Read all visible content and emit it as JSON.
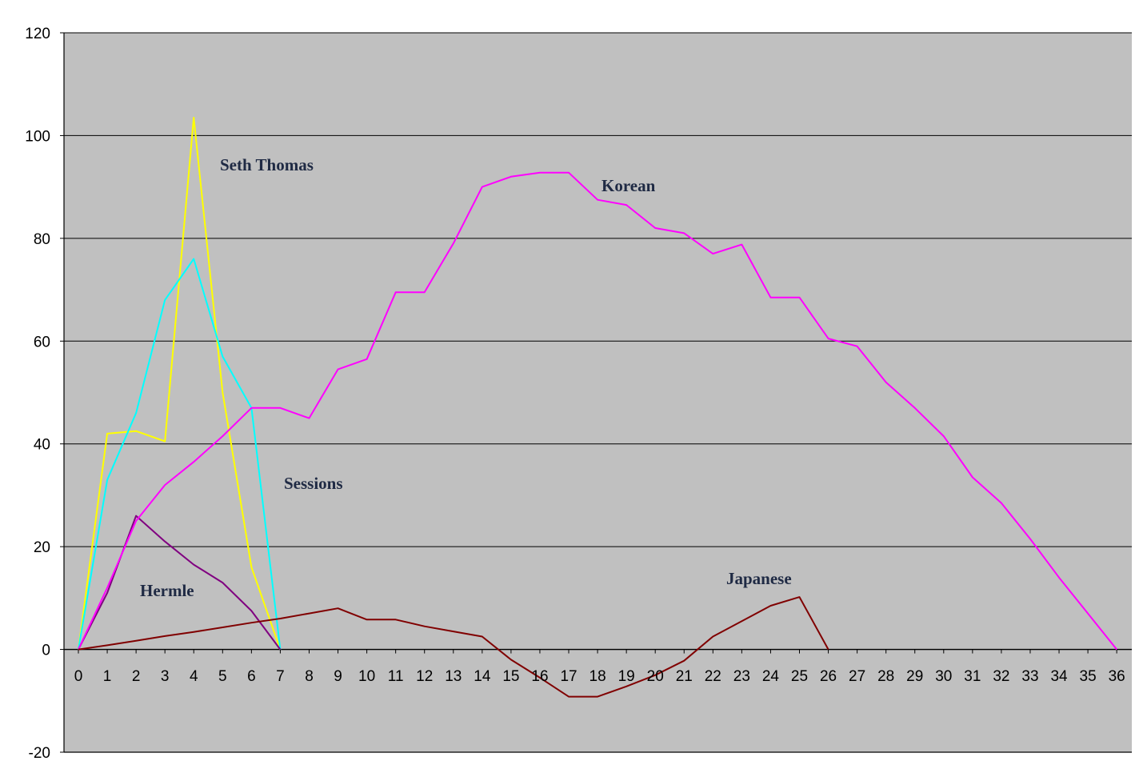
{
  "chart_data": {
    "type": "line",
    "title": "",
    "xlabel": "",
    "ylabel": "",
    "x_ticks": [
      "0",
      "1",
      "2",
      "3",
      "4",
      "5",
      "6",
      "7",
      "8",
      "9",
      "10",
      "11",
      "12",
      "13",
      "14",
      "15",
      "16",
      "17",
      "18",
      "19",
      "20",
      "21",
      "22",
      "23",
      "24",
      "25",
      "26",
      "27",
      "28",
      "29",
      "30",
      "31",
      "32",
      "33",
      "34",
      "35",
      "36"
    ],
    "y_ticks": [
      "-20",
      "0",
      "20",
      "40",
      "60",
      "80",
      "100",
      "120"
    ],
    "xlim": [
      0,
      36
    ],
    "ylim": [
      -20,
      120
    ],
    "grid": "horizontal",
    "legend": "none",
    "plot_background": "#c0c0c0",
    "series": [
      {
        "name": "Seth Thomas",
        "color": "#ffff00",
        "x": [
          0,
          1,
          2,
          3,
          4,
          5,
          6,
          7
        ],
        "values": [
          0,
          42,
          42.5,
          40.5,
          103.5,
          50,
          16,
          0
        ]
      },
      {
        "name": "Sessions",
        "color": "#00ffff",
        "x": [
          0,
          1,
          2,
          3,
          4,
          5,
          6,
          7
        ],
        "values": [
          0,
          33,
          46,
          68,
          76,
          57,
          47,
          0
        ]
      },
      {
        "name": "Hermle",
        "color": "#800080",
        "x": [
          0,
          1,
          2,
          3,
          4,
          5,
          6,
          7
        ],
        "values": [
          0,
          11,
          26,
          21,
          16.5,
          13,
          7.5,
          0
        ]
      },
      {
        "name": "Korean",
        "color": "#ff00ff",
        "x": [
          0,
          1,
          2,
          3,
          4,
          5,
          6,
          7,
          8,
          9,
          10,
          11,
          12,
          13,
          14,
          15,
          16,
          17,
          18,
          19,
          20,
          21,
          22,
          23,
          24,
          25,
          26,
          27,
          28,
          29,
          30,
          31,
          32,
          33,
          34,
          35,
          36
        ],
        "values": [
          0,
          12,
          25,
          32,
          36.5,
          41.5,
          47,
          47,
          45,
          54.5,
          56.5,
          69.5,
          69.5,
          79,
          90,
          92,
          92.8,
          92.8,
          87.5,
          86.5,
          82,
          81,
          77,
          78.8,
          68.5,
          68.5,
          60.5,
          59,
          52,
          47,
          41.5,
          33.5,
          28.5,
          21.5,
          14,
          7,
          0
        ]
      },
      {
        "name": "Japanese",
        "color": "#800000",
        "x": [
          0,
          1,
          2,
          3,
          4,
          5,
          6,
          7,
          8,
          9,
          10,
          11,
          12,
          13,
          14,
          15,
          16,
          17,
          18,
          19,
          20,
          21,
          22,
          23,
          24,
          25,
          26
        ],
        "values": [
          0,
          0.8,
          1.7,
          2.6,
          3.4,
          4.3,
          5.2,
          6,
          7,
          8,
          5.8,
          5.8,
          4.5,
          3.5,
          2.5,
          -2,
          -5.5,
          -9.2,
          -9.2,
          -7.2,
          -5,
          -2.2,
          2.5,
          5.5,
          8.5,
          10.2,
          0
        ]
      }
    ]
  }
}
